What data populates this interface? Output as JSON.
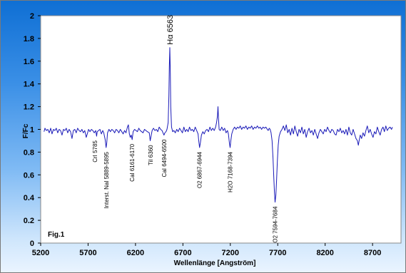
{
  "chart_data": {
    "type": "line",
    "title": "",
    "xlabel": "Wellenlänge [Angström]",
    "ylabel": "F/Fc",
    "xlim": [
      5200,
      9000
    ],
    "ylim": [
      0,
      2
    ],
    "x_ticks": [
      "5200",
      "5700",
      "6200",
      "6700",
      "7200",
      "7700",
      "8200",
      "8700"
    ],
    "y_ticks": [
      "0",
      "0.2",
      "0.4",
      "0.6",
      "0.8",
      "1",
      "1.2",
      "1.4",
      "1.6",
      "1.8",
      "2"
    ],
    "figure_label": "Fig.1",
    "grid": false,
    "line_color": "#1a1ab8",
    "series": [
      {
        "values": [
          [
            5235,
            0.98
          ],
          [
            5245,
            1.01
          ],
          [
            5260,
            0.99
          ],
          [
            5275,
            1.0
          ],
          [
            5290,
            0.97
          ],
          [
            5305,
            1.01
          ],
          [
            5320,
            0.96
          ],
          [
            5335,
            1.0
          ],
          [
            5350,
            0.99
          ],
          [
            5365,
            1.01
          ],
          [
            5380,
            0.97
          ],
          [
            5395,
            1.0
          ],
          [
            5410,
            0.99
          ],
          [
            5425,
            0.95
          ],
          [
            5440,
            1.0
          ],
          [
            5455,
            0.99
          ],
          [
            5470,
            1.01
          ],
          [
            5485,
            0.97
          ],
          [
            5500,
            1.0
          ],
          [
            5515,
            0.98
          ],
          [
            5530,
            0.92
          ],
          [
            5545,
            0.99
          ],
          [
            5560,
            1.0
          ],
          [
            5575,
            0.97
          ],
          [
            5590,
            1.01
          ],
          [
            5605,
            0.99
          ],
          [
            5620,
            0.98
          ],
          [
            5635,
            1.0
          ],
          [
            5650,
            0.97
          ],
          [
            5665,
            0.99
          ],
          [
            5680,
            0.93
          ],
          [
            5695,
            0.97
          ],
          [
            5705,
            1.0
          ],
          [
            5720,
            0.98
          ],
          [
            5735,
            1.0
          ],
          [
            5750,
            0.99
          ],
          [
            5765,
            0.97
          ],
          [
            5780,
            0.99
          ],
          [
            5790,
            0.94
          ],
          [
            5797,
            0.98
          ],
          [
            5810,
            0.99
          ],
          [
            5825,
            1.0
          ],
          [
            5840,
            0.96
          ],
          [
            5855,
            0.99
          ],
          [
            5865,
            0.97
          ],
          [
            5880,
            0.91
          ],
          [
            5890,
            0.84
          ],
          [
            5897,
            0.88
          ],
          [
            5905,
            0.97
          ],
          [
            5920,
            1.0
          ],
          [
            5935,
            0.98
          ],
          [
            5950,
            1.0
          ],
          [
            5965,
            0.99
          ],
          [
            5980,
            0.97
          ],
          [
            5995,
            1.0
          ],
          [
            6010,
            0.99
          ],
          [
            6025,
            0.97
          ],
          [
            6040,
            1.0
          ],
          [
            6055,
            0.98
          ],
          [
            6070,
            0.96
          ],
          [
            6085,
            0.99
          ],
          [
            6100,
            0.97
          ],
          [
            6115,
            1.02
          ],
          [
            6125,
            1.04
          ],
          [
            6135,
            0.96
          ],
          [
            6145,
            0.93
          ],
          [
            6155,
            0.95
          ],
          [
            6165,
            0.91
          ],
          [
            6175,
            0.98
          ],
          [
            6190,
            1.0
          ],
          [
            6205,
            0.99
          ],
          [
            6220,
            0.98
          ],
          [
            6235,
            1.01
          ],
          [
            6250,
            0.99
          ],
          [
            6265,
            0.98
          ],
          [
            6280,
            0.97
          ],
          [
            6295,
            1.0
          ],
          [
            6310,
            0.99
          ],
          [
            6325,
            0.98
          ],
          [
            6345,
            0.97
          ],
          [
            6355,
            0.9
          ],
          [
            6362,
            0.93
          ],
          [
            6375,
            0.99
          ],
          [
            6390,
            1.01
          ],
          [
            6405,
            0.99
          ],
          [
            6420,
            1.0
          ],
          [
            6435,
            0.98
          ],
          [
            6450,
            1.02
          ],
          [
            6465,
            1.0
          ],
          [
            6480,
            0.99
          ],
          [
            6490,
            0.97
          ],
          [
            6500,
            0.95
          ],
          [
            6510,
            0.97
          ],
          [
            6522,
            0.98
          ],
          [
            6532,
            1.0
          ],
          [
            6545,
            1.06
          ],
          [
            6552,
            1.3
          ],
          [
            6557,
            1.55
          ],
          [
            6562,
            1.72
          ],
          [
            6567,
            1.5
          ],
          [
            6572,
            1.2
          ],
          [
            6580,
            1.02
          ],
          [
            6592,
            0.98
          ],
          [
            6605,
            0.99
          ],
          [
            6620,
            0.97
          ],
          [
            6635,
            1.0
          ],
          [
            6650,
            0.98
          ],
          [
            6665,
            1.01
          ],
          [
            6680,
            0.99
          ],
          [
            6695,
            0.97
          ],
          [
            6710,
            1.02
          ],
          [
            6725,
            0.98
          ],
          [
            6740,
            1.0
          ],
          [
            6755,
            0.98
          ],
          [
            6770,
            1.02
          ],
          [
            6785,
            0.99
          ],
          [
            6800,
            1.0
          ],
          [
            6815,
            0.98
          ],
          [
            6830,
            1.02
          ],
          [
            6845,
            0.99
          ],
          [
            6860,
            0.96
          ],
          [
            6868,
            0.89
          ],
          [
            6876,
            0.84
          ],
          [
            6884,
            0.88
          ],
          [
            6895,
            0.95
          ],
          [
            6910,
            0.98
          ],
          [
            6925,
            0.96
          ],
          [
            6940,
            0.99
          ],
          [
            6955,
            1.0
          ],
          [
            6970,
            0.98
          ],
          [
            6985,
            1.02
          ],
          [
            7000,
            0.99
          ],
          [
            7015,
            1.01
          ],
          [
            7030,
            0.99
          ],
          [
            7045,
            1.02
          ],
          [
            7055,
            1.06
          ],
          [
            7065,
            1.12
          ],
          [
            7070,
            1.2
          ],
          [
            7075,
            1.1
          ],
          [
            7082,
            1.0
          ],
          [
            7095,
            0.99
          ],
          [
            7110,
            1.02
          ],
          [
            7125,
            0.99
          ],
          [
            7140,
            1.01
          ],
          [
            7155,
            0.97
          ],
          [
            7170,
            0.99
          ],
          [
            7180,
            0.96
          ],
          [
            7190,
            0.88
          ],
          [
            7198,
            0.84
          ],
          [
            7205,
            0.9
          ],
          [
            7215,
            0.96
          ],
          [
            7230,
            1.0
          ],
          [
            7245,
            1.02
          ],
          [
            7260,
            1.0
          ],
          [
            7275,
            1.02
          ],
          [
            7290,
            1.01
          ],
          [
            7305,
            1.03
          ],
          [
            7320,
            1.0
          ],
          [
            7335,
            1.02
          ],
          [
            7350,
            1.01
          ],
          [
            7365,
            1.03
          ],
          [
            7380,
            1.0
          ],
          [
            7395,
            1.02
          ],
          [
            7410,
            1.01
          ],
          [
            7425,
            1.03
          ],
          [
            7440,
            1.0
          ],
          [
            7455,
            1.02
          ],
          [
            7470,
            1.01
          ],
          [
            7485,
            1.03
          ],
          [
            7500,
            1.01
          ],
          [
            7515,
            1.02
          ],
          [
            7530,
            1.0
          ],
          [
            7545,
            1.02
          ],
          [
            7560,
            1.01
          ],
          [
            7575,
            1.02
          ],
          [
            7590,
            1.0
          ],
          [
            7600,
            0.99
          ],
          [
            7610,
            1.01
          ],
          [
            7620,
            1.0
          ],
          [
            7630,
            0.97
          ],
          [
            7640,
            0.9
          ],
          [
            7650,
            0.75
          ],
          [
            7658,
            0.58
          ],
          [
            7665,
            0.45
          ],
          [
            7672,
            0.36
          ],
          [
            7680,
            0.42
          ],
          [
            7688,
            0.55
          ],
          [
            7696,
            0.72
          ],
          [
            7705,
            0.86
          ],
          [
            7715,
            0.94
          ],
          [
            7730,
            0.98
          ],
          [
            7745,
            1.0
          ],
          [
            7760,
            1.03
          ],
          [
            7775,
            0.99
          ],
          [
            7790,
            1.04
          ],
          [
            7805,
            0.97
          ],
          [
            7820,
            1.0
          ],
          [
            7835,
            0.95
          ],
          [
            7850,
            1.01
          ],
          [
            7865,
            0.96
          ],
          [
            7880,
            1.03
          ],
          [
            7895,
            0.98
          ],
          [
            7910,
            0.94
          ],
          [
            7925,
            1.0
          ],
          [
            7940,
            0.97
          ],
          [
            7955,
            1.02
          ],
          [
            7970,
            0.96
          ],
          [
            7985,
            1.0
          ],
          [
            8000,
            0.93
          ],
          [
            8015,
            0.98
          ],
          [
            8030,
            1.01
          ],
          [
            8045,
            0.97
          ],
          [
            8060,
            0.99
          ],
          [
            8075,
            0.95
          ],
          [
            8090,
            1.0
          ],
          [
            8105,
            0.96
          ],
          [
            8120,
            0.92
          ],
          [
            8135,
            0.97
          ],
          [
            8150,
            1.0
          ],
          [
            8165,
            0.98
          ],
          [
            8180,
            0.96
          ],
          [
            8195,
            1.0
          ],
          [
            8210,
            0.98
          ],
          [
            8225,
            1.02
          ],
          [
            8240,
            0.99
          ],
          [
            8255,
            0.97
          ],
          [
            8270,
            1.0
          ],
          [
            8285,
            0.99
          ],
          [
            8300,
            0.96
          ],
          [
            8315,
            0.95
          ],
          [
            8330,
            1.0
          ],
          [
            8345,
            0.98
          ],
          [
            8360,
            1.01
          ],
          [
            8375,
            0.97
          ],
          [
            8390,
            0.99
          ],
          [
            8405,
            0.96
          ],
          [
            8420,
            1.0
          ],
          [
            8435,
            0.95
          ],
          [
            8450,
            1.02
          ],
          [
            8465,
            0.97
          ],
          [
            8480,
            0.95
          ],
          [
            8495,
            1.0
          ],
          [
            8510,
            0.96
          ],
          [
            8525,
            0.92
          ],
          [
            8540,
            0.9
          ],
          [
            8550,
            0.86
          ],
          [
            8558,
            0.9
          ],
          [
            8570,
            0.95
          ],
          [
            8585,
            0.92
          ],
          [
            8600,
            0.97
          ],
          [
            8615,
            0.94
          ],
          [
            8630,
            0.99
          ],
          [
            8645,
            1.03
          ],
          [
            8660,
            0.97
          ],
          [
            8675,
            1.0
          ],
          [
            8690,
            0.96
          ],
          [
            8705,
            0.93
          ],
          [
            8720,
            0.98
          ],
          [
            8735,
            0.96
          ],
          [
            8750,
            1.02
          ],
          [
            8765,
            0.98
          ],
          [
            8780,
            0.95
          ],
          [
            8795,
            1.0
          ],
          [
            8810,
            1.02
          ],
          [
            8825,
            0.98
          ],
          [
            8840,
            1.03
          ],
          [
            8855,
            0.99
          ],
          [
            8870,
            1.01
          ],
          [
            8885,
            1.02
          ],
          [
            8900,
            1.0
          ],
          [
            8910,
            1.02
          ]
        ]
      }
    ],
    "annotations": [
      {
        "text": "CrI 5785",
        "x": 5770
      },
      {
        "text": "Interst. NaI 5889-5895",
        "x": 5892
      },
      {
        "text": "CaI 6161-6170",
        "x": 6165
      },
      {
        "text": "TiI 6360",
        "x": 6357
      },
      {
        "text": "CaI 6494-6500",
        "x": 6500
      },
      {
        "text": "O2 6867-6944",
        "x": 6876
      },
      {
        "text": "H2O 7168-7394",
        "x": 7198
      },
      {
        "text": "O2 7594-7684",
        "x": 7672
      }
    ],
    "peak_label": {
      "text": "Hα 6563",
      "x": 6562
    }
  }
}
